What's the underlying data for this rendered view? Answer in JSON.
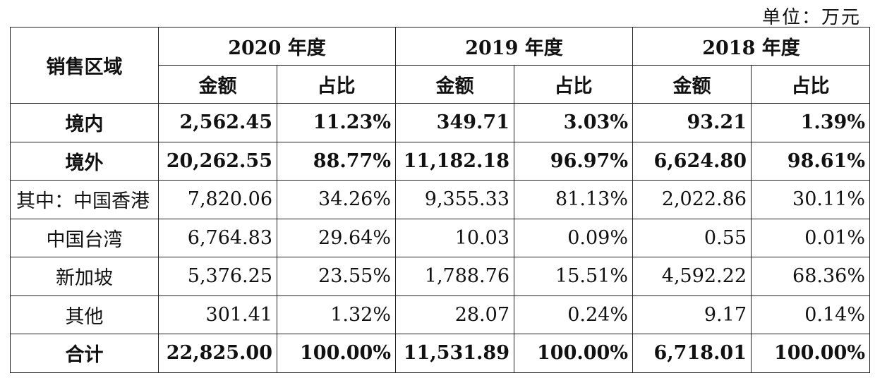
{
  "unit_label": "单位：万元",
  "header": {
    "region": "销售区域",
    "years": [
      "2020 年度",
      "2019 年度",
      "2018 年度"
    ],
    "amount": "金额",
    "share": "占比"
  },
  "rows": [
    {
      "label": "境内",
      "bold": true,
      "values": [
        "2,562.45",
        "11.23%",
        "349.71",
        "3.03%",
        "93.21",
        "1.39%"
      ]
    },
    {
      "label": "境外",
      "bold": true,
      "values": [
        "20,262.55",
        "88.77%",
        "11,182.18",
        "96.97%",
        "6,624.80",
        "98.61%"
      ]
    },
    {
      "label": "其中：中国香港",
      "bold": false,
      "values": [
        "7,820.06",
        "34.26%",
        "9,355.33",
        "81.13%",
        "2,022.86",
        "30.11%"
      ]
    },
    {
      "label": "中国台湾",
      "bold": false,
      "values": [
        "6,764.83",
        "29.64%",
        "10.03",
        "0.09%",
        "0.55",
        "0.01%"
      ]
    },
    {
      "label": "新加坡",
      "bold": false,
      "values": [
        "5,376.25",
        "23.55%",
        "1,788.76",
        "15.51%",
        "4,592.22",
        "68.36%"
      ]
    },
    {
      "label": "其他",
      "bold": false,
      "values": [
        "301.41",
        "1.32%",
        "28.07",
        "0.24%",
        "9.17",
        "0.14%"
      ]
    },
    {
      "label": "合计",
      "bold": true,
      "values": [
        "22,825.00",
        "100.00%",
        "11,531.89",
        "100.00%",
        "6,718.01",
        "100.00%"
      ]
    }
  ]
}
